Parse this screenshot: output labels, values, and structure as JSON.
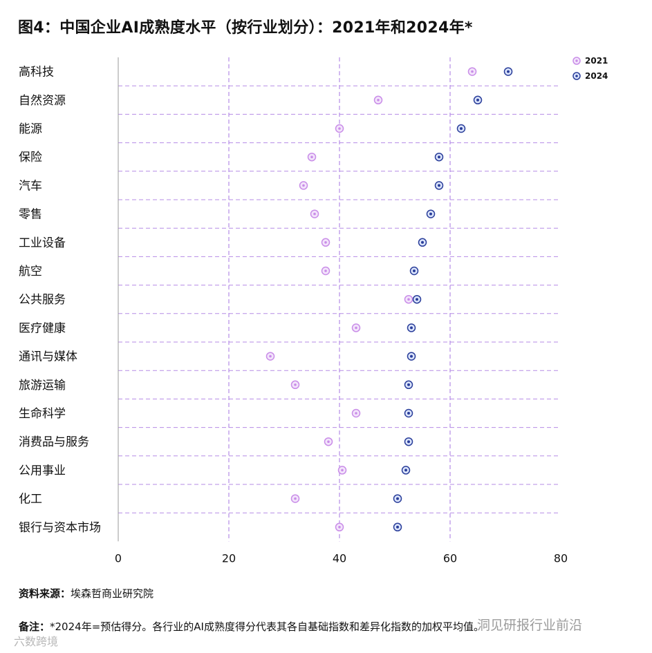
{
  "title": "图4：中国企业AI成熟度水平（按行业划分）：2021年和2024年*",
  "chart_data": {
    "type": "dumbbell",
    "xlim": [
      0,
      80
    ],
    "xticks": [
      0,
      20,
      40,
      60,
      80
    ],
    "series": [
      {
        "name": "2021",
        "color": "#c98de8"
      },
      {
        "name": "2024",
        "color": "#4a6fd6"
      }
    ],
    "categories": [
      "高科技",
      "自然资源",
      "能源",
      "保险",
      "汽车",
      "零售",
      "工业设备",
      "航空",
      "公共服务",
      "医疗健康",
      "通讯与媒体",
      "旅游运输",
      "生命科学",
      "消费品与服务",
      "公用事业",
      "化工",
      "银行与资本市场"
    ],
    "values_2021": [
      64,
      47,
      40,
      35,
      33.5,
      35.5,
      37.5,
      37.5,
      52.5,
      43,
      27.5,
      32,
      43,
      38,
      40.5,
      32,
      40
    ],
    "values_2024": [
      70.5,
      65,
      62,
      58,
      58,
      56.5,
      55,
      53.5,
      54,
      53,
      53,
      52.5,
      52.5,
      52.5,
      52,
      50.5,
      50.5
    ],
    "legend_position": "top-right"
  },
  "source": {
    "label": "资料来源：",
    "text": "埃森哲商业研究院"
  },
  "note": {
    "label": "备注：",
    "text": "*2024年=预估得分。各行业的AI成熟度得分代表其各自基础指数和差异化指数的加权平均值。"
  },
  "watermarks": {
    "wechat": "洞见研报行业前沿",
    "bottom_left": "六数跨境"
  }
}
